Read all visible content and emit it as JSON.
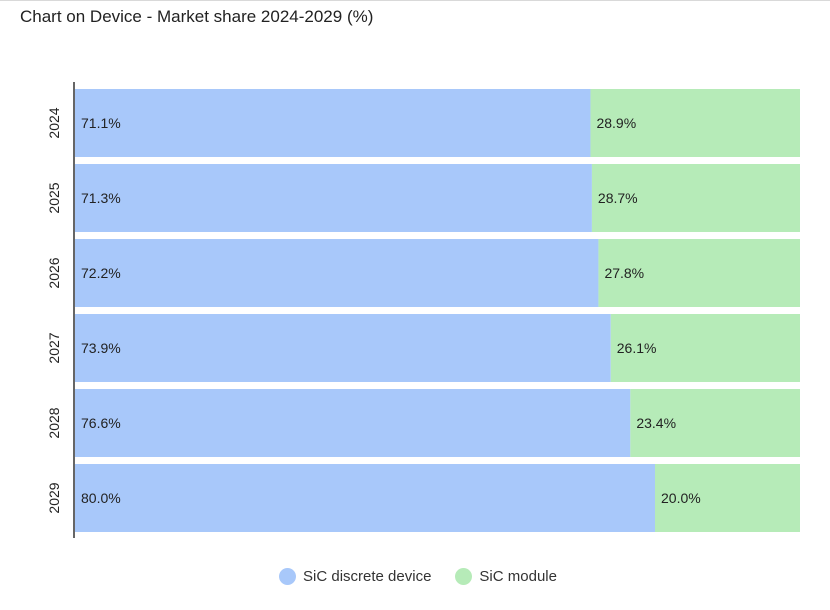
{
  "chart_data": {
    "type": "bar",
    "orientation": "horizontal",
    "stacked": true,
    "title": "Chart on Device - Market share 2024-2029 (%)",
    "categories": [
      "2024",
      "2025",
      "2026",
      "2027",
      "2028",
      "2029"
    ],
    "series": [
      {
        "name": "SiC discrete device",
        "values": [
          71.1,
          71.3,
          72.2,
          73.9,
          76.6,
          80.0
        ],
        "labels": [
          "71.1%",
          "71.3%",
          "72.2%",
          "73.9%",
          "76.6%",
          "80.0%"
        ],
        "color": "#a8c8fa"
      },
      {
        "name": "SiC module",
        "values": [
          28.9,
          28.7,
          27.8,
          26.1,
          23.4,
          20.0
        ],
        "labels": [
          "28.9%",
          "28.7%",
          "27.8%",
          "26.1%",
          "23.4%",
          "20.0%"
        ],
        "color": "#b6ebb8"
      }
    ],
    "xlim": [
      0,
      100
    ],
    "grid": false,
    "legend_position": "bottom"
  }
}
